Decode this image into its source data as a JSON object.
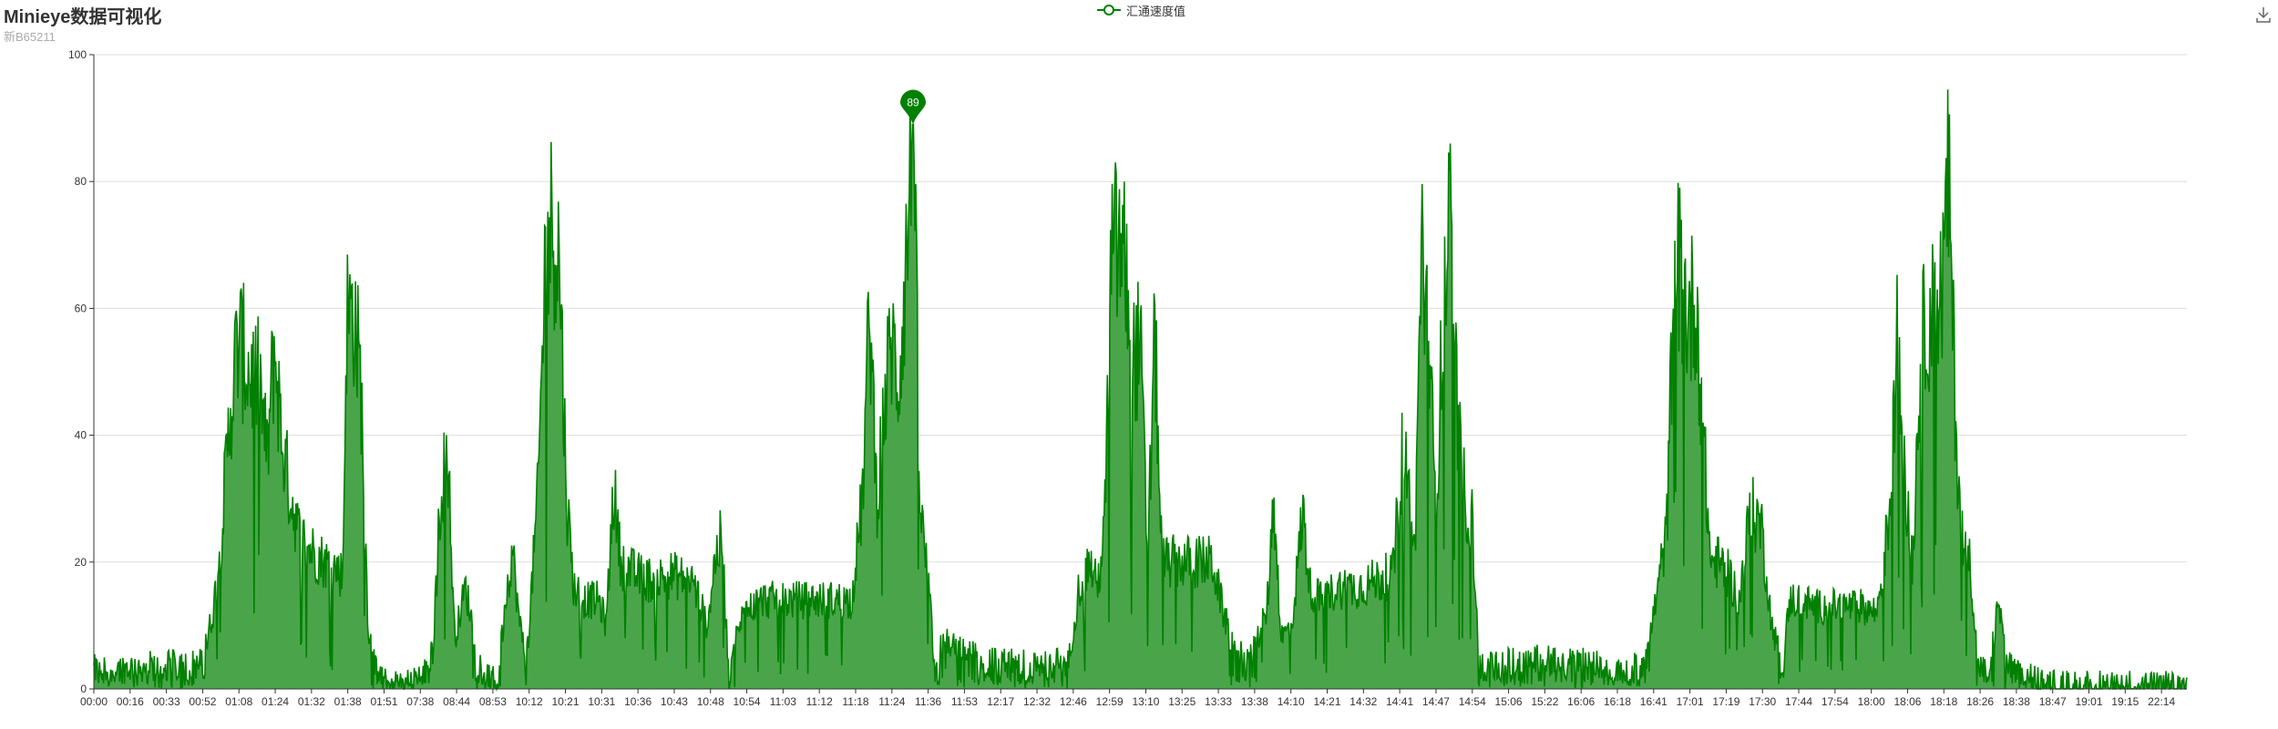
{
  "title": "Minieye数据可视化",
  "subtitle": "新B65211",
  "legend": {
    "label": "汇通速度值",
    "color": "#008000"
  },
  "toolbox": {
    "icon": "download-icon"
  },
  "chart_data": {
    "type": "area",
    "title": "Minieye数据可视化",
    "subtitle": "新B65211",
    "ylim": [
      0,
      100
    ],
    "yticks": [
      0,
      20,
      40,
      60,
      80,
      100
    ],
    "grid": true,
    "legend_position": "top-center",
    "line_color": "#008000",
    "fill_color": "#4aa54a",
    "categories": [
      "00:00",
      "00:16",
      "00:33",
      "00:52",
      "01:08",
      "01:24",
      "01:32",
      "01:38",
      "01:51",
      "07:38",
      "08:44",
      "08:53",
      "10:12",
      "10:21",
      "10:31",
      "10:36",
      "10:43",
      "10:48",
      "10:54",
      "11:03",
      "11:12",
      "11:18",
      "11:24",
      "11:36",
      "11:53",
      "12:17",
      "12:32",
      "12:46",
      "12:59",
      "13:10",
      "13:25",
      "13:33",
      "13:38",
      "14:10",
      "14:21",
      "14:32",
      "14:41",
      "14:47",
      "14:54",
      "15:06",
      "15:22",
      "16:06",
      "16:18",
      "16:41",
      "17:01",
      "17:19",
      "17:30",
      "17:44",
      "17:54",
      "18:00",
      "18:06",
      "18:18",
      "18:26",
      "18:38",
      "18:47",
      "19:01",
      "19:15",
      "22:14"
    ],
    "series": [
      {
        "name": "汇通速度值",
        "x_range": [
          0,
          58
        ],
        "control_points": [
          [
            0,
            3
          ],
          [
            3.0,
            4
          ],
          [
            3.3,
            12
          ],
          [
            3.5,
            22
          ],
          [
            3.8,
            45
          ],
          [
            4.0,
            55
          ],
          [
            4.3,
            50
          ],
          [
            4.6,
            48
          ],
          [
            4.8,
            36
          ],
          [
            5.0,
            54
          ],
          [
            5.2,
            40
          ],
          [
            5.4,
            32
          ],
          [
            5.7,
            24
          ],
          [
            6.0,
            22
          ],
          [
            6.4,
            20
          ],
          [
            6.7,
            19
          ],
          [
            6.9,
            18
          ],
          [
            7.0,
            58
          ],
          [
            7.2,
            60
          ],
          [
            7.4,
            48
          ],
          [
            7.6,
            10
          ],
          [
            7.8,
            3
          ],
          [
            8.0,
            1
          ],
          [
            9.0,
            1
          ],
          [
            9.4,
            6
          ],
          [
            9.6,
            30
          ],
          [
            9.8,
            38
          ],
          [
            10.0,
            8
          ],
          [
            10.3,
            16
          ],
          [
            10.5,
            10
          ],
          [
            10.8,
            2
          ],
          [
            11.2,
            1
          ],
          [
            11.4,
            14
          ],
          [
            11.6,
            22
          ],
          [
            11.8,
            10
          ],
          [
            12.0,
            5
          ],
          [
            12.3,
            30
          ],
          [
            12.5,
            66
          ],
          [
            12.7,
            74
          ],
          [
            12.9,
            68
          ],
          [
            13.1,
            30
          ],
          [
            13.3,
            16
          ],
          [
            13.6,
            14
          ],
          [
            14.0,
            14
          ],
          [
            14.2,
            10
          ],
          [
            14.4,
            32
          ],
          [
            14.6,
            20
          ],
          [
            15.0,
            18
          ],
          [
            15.5,
            17
          ],
          [
            16.0,
            18
          ],
          [
            16.6,
            17
          ],
          [
            17.0,
            10
          ],
          [
            17.2,
            20
          ],
          [
            17.4,
            24
          ],
          [
            17.6,
            2
          ],
          [
            17.8,
            8
          ],
          [
            18.0,
            12
          ],
          [
            18.5,
            14
          ],
          [
            19.0,
            14
          ],
          [
            19.5,
            14
          ],
          [
            20.0,
            14
          ],
          [
            20.5,
            14
          ],
          [
            21.0,
            14
          ],
          [
            21.3,
            30
          ],
          [
            21.5,
            60
          ],
          [
            21.7,
            30
          ],
          [
            21.9,
            44
          ],
          [
            22.1,
            55
          ],
          [
            22.3,
            48
          ],
          [
            22.5,
            66
          ],
          [
            22.7,
            89
          ],
          [
            22.9,
            28
          ],
          [
            23.1,
            18
          ],
          [
            23.3,
            4
          ],
          [
            23.6,
            8
          ],
          [
            24.0,
            6
          ],
          [
            24.5,
            5
          ],
          [
            25.0,
            4
          ],
          [
            25.5,
            4
          ],
          [
            26.0,
            4
          ],
          [
            26.5,
            4
          ],
          [
            27.0,
            4
          ],
          [
            27.3,
            16
          ],
          [
            27.6,
            20
          ],
          [
            27.8,
            16
          ],
          [
            28.0,
            24
          ],
          [
            28.2,
            68
          ],
          [
            28.4,
            70
          ],
          [
            28.6,
            66
          ],
          [
            28.8,
            52
          ],
          [
            29.0,
            54
          ],
          [
            29.2,
            20
          ],
          [
            29.4,
            56
          ],
          [
            29.6,
            20
          ],
          [
            30.0,
            20
          ],
          [
            30.5,
            20
          ],
          [
            31.0,
            20
          ],
          [
            31.3,
            12
          ],
          [
            31.6,
            6
          ],
          [
            32.0,
            4
          ],
          [
            32.5,
            12
          ],
          [
            32.7,
            30
          ],
          [
            32.9,
            8
          ],
          [
            33.2,
            10
          ],
          [
            33.5,
            28
          ],
          [
            33.7,
            16
          ],
          [
            34.0,
            14
          ],
          [
            34.5,
            16
          ],
          [
            35.0,
            16
          ],
          [
            35.5,
            17
          ],
          [
            36.0,
            18
          ],
          [
            36.3,
            40
          ],
          [
            36.6,
            20
          ],
          [
            36.8,
            72
          ],
          [
            37.0,
            50
          ],
          [
            37.2,
            30
          ],
          [
            37.4,
            60
          ],
          [
            37.6,
            74
          ],
          [
            37.8,
            40
          ],
          [
            38.0,
            30
          ],
          [
            38.2,
            26
          ],
          [
            38.4,
            3
          ],
          [
            38.8,
            4
          ],
          [
            39.5,
            4
          ],
          [
            40.0,
            5
          ],
          [
            41.0,
            4
          ],
          [
            42.0,
            4
          ],
          [
            42.5,
            3
          ],
          [
            43.0,
            4
          ],
          [
            43.4,
            18
          ],
          [
            43.6,
            26
          ],
          [
            43.8,
            70
          ],
          [
            44.0,
            64
          ],
          [
            44.2,
            58
          ],
          [
            44.4,
            62
          ],
          [
            44.6,
            40
          ],
          [
            44.8,
            20
          ],
          [
            45.0,
            20
          ],
          [
            45.3,
            18
          ],
          [
            45.6,
            14
          ],
          [
            45.9,
            28
          ],
          [
            46.2,
            26
          ],
          [
            46.5,
            10
          ],
          [
            46.8,
            4
          ],
          [
            47.0,
            14
          ],
          [
            47.3,
            14
          ],
          [
            47.7,
            13
          ],
          [
            48.0,
            13
          ],
          [
            48.5,
            13
          ],
          [
            49.0,
            13
          ],
          [
            49.4,
            12
          ],
          [
            49.6,
            20
          ],
          [
            49.8,
            30
          ],
          [
            50.0,
            60
          ],
          [
            50.2,
            30
          ],
          [
            50.4,
            20
          ],
          [
            50.6,
            50
          ],
          [
            50.8,
            60
          ],
          [
            51.0,
            58
          ],
          [
            51.2,
            62
          ],
          [
            51.4,
            80
          ],
          [
            51.6,
            40
          ],
          [
            51.8,
            22
          ],
          [
            52.0,
            20
          ],
          [
            52.2,
            4
          ],
          [
            52.5,
            2
          ],
          [
            52.8,
            14
          ],
          [
            53.0,
            4
          ],
          [
            53.4,
            2
          ],
          [
            53.8,
            2
          ],
          [
            54.0,
            1
          ]
        ],
        "peak": {
          "x": 22.7,
          "value": 89,
          "label": "89"
        }
      }
    ]
  }
}
